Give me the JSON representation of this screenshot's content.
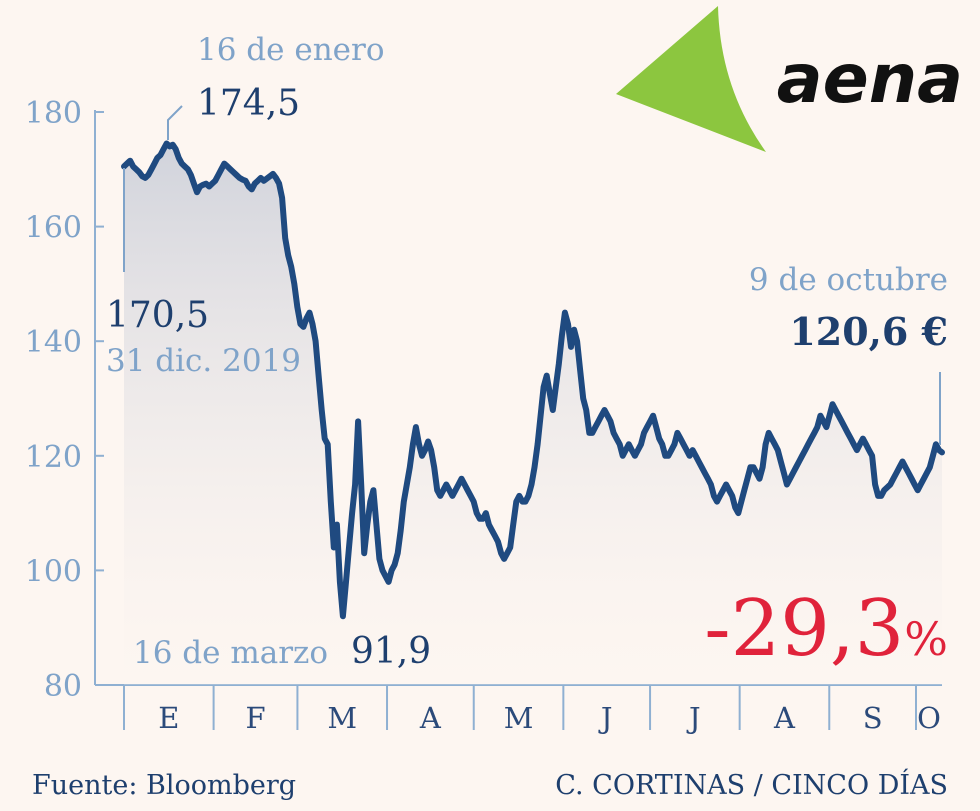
{
  "chart_data": {
    "type": "area",
    "ylim": [
      80,
      180
    ],
    "yticks": [
      80,
      100,
      120,
      140,
      160,
      180
    ],
    "month_labels": [
      "E",
      "F",
      "M",
      "A",
      "M",
      "J",
      "J",
      "A",
      "S",
      "O"
    ],
    "month_days": [
      31,
      29,
      31,
      30,
      31,
      30,
      31,
      31,
      30,
      9
    ],
    "series": [
      {
        "values": [
          170.5,
          171,
          171.5,
          170.5,
          170,
          169.5,
          168.8,
          168.5,
          169,
          170,
          171,
          172,
          172.5,
          173.5,
          174.5,
          174,
          174.3,
          173.5,
          172,
          171,
          170.5,
          170,
          169,
          167.5,
          166,
          167,
          167.3,
          167.5,
          167,
          167.5,
          168,
          169,
          170,
          171,
          170.5,
          170,
          169.5,
          169,
          168.5,
          168.2,
          168,
          167,
          166.5,
          167.5,
          168,
          168.5,
          168,
          168.4,
          168.8,
          169.2,
          168.5,
          167.5,
          165,
          158,
          155,
          153,
          150,
          146,
          143,
          142.5,
          144,
          145,
          143,
          140,
          134,
          128,
          123,
          122,
          112,
          104,
          108,
          98,
          92,
          98,
          104,
          110,
          115,
          126,
          115,
          103,
          108,
          112,
          114,
          108,
          102,
          100,
          99,
          98,
          100,
          101,
          103,
          107,
          112,
          115,
          118,
          122,
          125,
          122,
          120,
          121,
          122.5,
          121,
          118,
          114,
          113,
          114,
          115,
          114,
          113,
          114,
          115,
          116,
          115,
          114,
          113,
          112,
          110,
          109,
          109,
          110,
          108,
          107,
          106,
          105,
          103,
          102,
          103,
          104,
          108,
          112,
          113,
          112,
          112,
          113,
          115,
          118,
          122,
          127,
          132,
          134,
          131,
          128,
          132,
          136,
          141,
          145,
          143,
          139,
          142,
          140,
          135,
          130,
          128,
          124,
          124,
          125,
          126,
          127,
          128,
          127,
          126,
          124,
          123,
          122,
          120,
          121,
          122,
          121,
          120,
          121,
          122,
          124,
          125,
          126,
          127,
          125,
          123,
          122,
          120,
          120,
          121,
          122,
          124,
          123,
          122,
          121,
          120,
          121,
          120,
          119,
          118,
          117,
          116,
          115,
          113,
          112,
          113,
          114,
          115,
          114,
          113,
          111,
          110,
          112,
          114,
          116,
          118,
          118,
          117,
          116,
          118,
          122,
          124,
          123,
          122,
          121,
          119,
          117,
          115,
          116,
          117,
          118,
          119,
          120,
          121,
          122,
          123,
          124,
          125,
          127,
          126,
          125,
          127,
          129,
          128,
          127,
          126,
          125,
          124,
          123,
          122,
          121,
          122,
          123,
          122,
          121,
          120,
          115,
          113,
          113,
          114,
          114.5,
          115,
          116,
          117,
          118,
          119,
          118,
          117,
          116,
          115,
          114,
          115,
          116,
          117,
          118,
          120,
          122,
          121,
          120.6
        ]
      }
    ]
  },
  "annotations": {
    "peak_date": "16 de enero",
    "peak_value": "174,5",
    "start_value": "170,5",
    "start_date": "31 dic. 2019",
    "low_date": "16 de marzo",
    "low_value": "91,9",
    "end_date": "9 de octubre",
    "end_value": "120,6 €"
  },
  "change": {
    "value": "-29,3",
    "unit": "%"
  },
  "logo": {
    "text": "aena"
  },
  "footer": {
    "source": "Fuente: Bloomberg",
    "credit": "C. CORTINAS / CINCO DÍAS"
  },
  "colors": {
    "line": "#1f4a80",
    "axis": "#8fb0d2",
    "change": "#e0233b",
    "logo_green": "#8cc63f",
    "background": "#fdf6f1"
  }
}
